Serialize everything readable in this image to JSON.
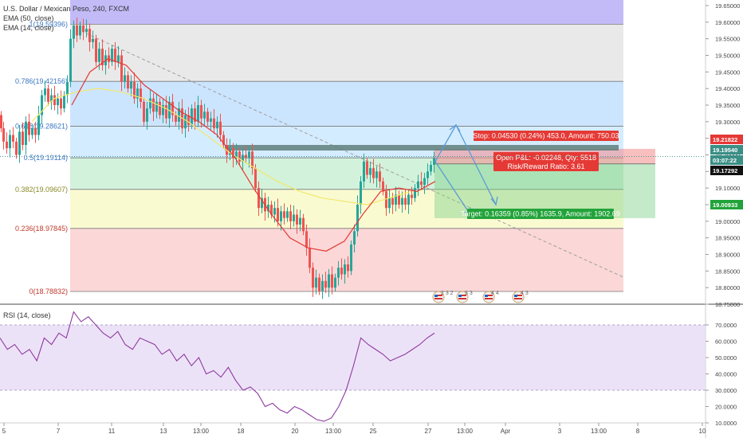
{
  "header": {
    "symbol_title": "U.S. Dollar / Mexican Peso, 240, FXCM",
    "ema50_label": "EMA (50, close)",
    "ema14_label": "EMA (14, close)"
  },
  "rsi": {
    "label": "RSI (14, close)",
    "ticks": [
      "70.0000",
      "60.0000",
      "50.0000",
      "40.0000",
      "30.0000",
      "20.0000",
      "10.0000"
    ],
    "upper_band": 70,
    "lower_band": 30
  },
  "price_axis": {
    "ticks": [
      "19.65000",
      "19.60000",
      "19.55000",
      "19.50000",
      "19.45000",
      "19.40000",
      "19.35000",
      "19.30000",
      "19.25000",
      "19.20000",
      "19.15000",
      "19.10000",
      "19.05000",
      "19.00000",
      "18.95000",
      "18.90000",
      "18.85000",
      "18.80000",
      "18.75000"
    ],
    "badges": [
      {
        "text": "19.21822",
        "color": "#e53935"
      },
      {
        "text": "19.19540",
        "color": "#3a8f86"
      },
      {
        "text": "03:07:22",
        "color": "#3a8f86"
      },
      {
        "text": "19.17292",
        "color": "#111111"
      },
      {
        "text": "19.00933",
        "color": "#22a33a"
      }
    ]
  },
  "time_axis": {
    "ticks": [
      "5",
      "7",
      "11",
      "13",
      "13:00",
      "18",
      "20",
      "13:00",
      "25",
      "27",
      "13:00",
      "Apr",
      "3",
      "13:00",
      "8",
      "10"
    ]
  },
  "fibonacci": {
    "levels": [
      {
        "label": "1(19.59396)",
        "price": 19.59396
      },
      {
        "label": "0.786(19.42156)",
        "price": 19.42156
      },
      {
        "label": "0.618(19.28621)",
        "price": 19.28621
      },
      {
        "label": "0.5(19.19114)",
        "price": 19.19114
      },
      {
        "label": "0.382(19.09607)",
        "price": 19.09607
      },
      {
        "label": "0.236(18.97845)",
        "price": 18.97845
      },
      {
        "label": "0(18.78832)",
        "price": 18.78832
      }
    ],
    "colors": [
      "#7b68ee",
      "#cfcfcf",
      "#8ec5ff",
      "#9fd4ff",
      "#9be3b0",
      "#f5f59a",
      "#f7a7a7"
    ]
  },
  "position": {
    "stop_label": "Stop: 0.04530 (0.24%) 453.0, Amount: 750.03",
    "pnl_label": "Open P&L: -0.02248, Qty: 5518",
    "rr_label": "Risk/Reward Ratio: 3.61",
    "target_label": "Target: 0.16359 (0.85%) 1635.9, Amount: 1902.69",
    "entry": 19.17292,
    "stop": 19.21822,
    "target": 19.00933
  },
  "events": [
    {
      "text": "2 3 2"
    },
    {
      "text": "3 3"
    },
    {
      "text": "4 4"
    },
    {
      "text": "4 3"
    }
  ],
  "colors": {
    "up": "#26a69a",
    "down": "#ef5350",
    "ema14": "#e53935",
    "ema50": "#f2e86a",
    "rsi": "#8e3aa0",
    "arrow": "#5b9bd5"
  },
  "chart_data": {
    "type": "candlestick",
    "title": "U.S. Dollar / Mexican Peso, 240, FXCM",
    "ylim": [
      18.74,
      19.67
    ],
    "x_ticks": [
      "5",
      "7",
      "11",
      "13",
      "13:00",
      "18",
      "20",
      "13:00",
      "25",
      "27",
      "13:00",
      "Apr",
      "3",
      "13:00",
      "8",
      "10"
    ],
    "series": [
      {
        "name": "EMA (14, close)",
        "values": [
          19.35,
          19.45,
          19.49,
          19.47,
          19.41,
          19.37,
          19.33,
          19.3,
          19.26,
          19.19,
          19.1,
          19.02,
          18.95,
          18.92,
          18.91,
          18.94,
          19.02,
          19.09,
          19.1,
          19.09,
          19.12
        ]
      },
      {
        "name": "EMA (50, close)",
        "values": [
          19.3,
          19.37,
          19.39,
          19.4,
          19.39,
          19.37,
          19.34,
          19.3,
          19.25,
          19.2,
          19.16,
          19.12,
          19.09,
          19.07,
          19.06,
          19.05,
          19.07,
          19.09
        ]
      },
      {
        "name": "RSI (14, close)",
        "values": [
          62,
          55,
          58,
          52,
          55,
          48,
          62,
          58,
          65,
          62,
          78,
          72,
          75,
          70,
          65,
          62,
          66,
          58,
          55,
          62,
          60,
          58,
          52,
          55,
          48,
          52,
          45,
          50,
          40,
          42,
          38,
          44,
          36,
          30,
          32,
          28,
          20,
          22,
          18,
          16,
          20,
          18,
          15,
          12,
          11,
          13,
          20,
          30,
          45,
          62,
          58,
          55,
          52,
          48,
          50,
          52,
          55,
          58,
          62,
          65
        ]
      }
    ]
  }
}
